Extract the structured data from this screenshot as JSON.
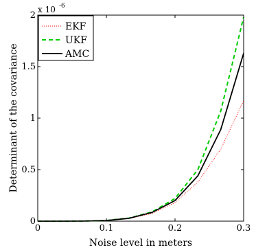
{
  "chart_data": {
    "type": "line",
    "title": "",
    "xlabel": "Noise level in meters",
    "ylabel": "Determinant of the covariance",
    "xlim": [
      0,
      0.3
    ],
    "ylim": [
      0,
      2
    ],
    "y_multiplier": {
      "base": "x 10",
      "exponent": "-6"
    },
    "x_ticks": [
      {
        "value": 0,
        "label": "0"
      },
      {
        "value": 0.1,
        "label": "0.1"
      },
      {
        "value": 0.2,
        "label": "0.2"
      },
      {
        "value": 0.3,
        "label": "0.3"
      }
    ],
    "y_ticks": [
      {
        "value": 0,
        "label": "0"
      },
      {
        "value": 0.5,
        "label": "0.5"
      },
      {
        "value": 1,
        "label": "1"
      },
      {
        "value": 1.5,
        "label": "1.5"
      },
      {
        "value": 2,
        "label": "2"
      }
    ],
    "grid": false,
    "legend_position": "top-left",
    "x": [
      0,
      0.0333,
      0.0667,
      0.1,
      0.1333,
      0.1667,
      0.2,
      0.2333,
      0.2667,
      0.3
    ],
    "series": [
      {
        "name": "EKF",
        "color": "#ff0000",
        "style": "dotted",
        "values": [
          0,
          0,
          0.001,
          0.006,
          0.025,
          0.075,
          0.18,
          0.38,
          0.7,
          1.17
        ]
      },
      {
        "name": "UKF",
        "color": "#00cc00",
        "style": "dashed",
        "values": [
          0,
          0,
          0.001,
          0.007,
          0.03,
          0.09,
          0.22,
          0.5,
          1.07,
          1.98
        ]
      },
      {
        "name": "AMC",
        "color": "#000000",
        "style": "solid",
        "values": [
          0,
          0,
          0.001,
          0.006,
          0.028,
          0.085,
          0.2,
          0.44,
          0.89,
          1.63
        ]
      }
    ]
  }
}
